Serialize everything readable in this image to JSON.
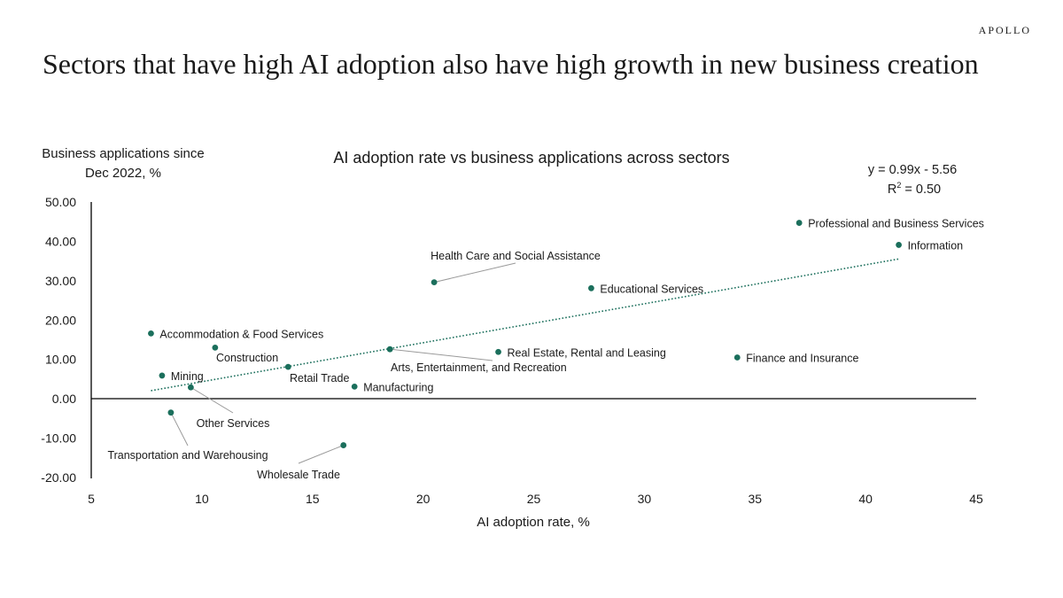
{
  "brand": "APOLLO",
  "headline": "Sectors that have high AI adoption also have high growth in new business creation",
  "chart_data": {
    "type": "scatter",
    "title": "AI adoption rate vs business applications across sectors",
    "xlabel": "AI adoption rate, %",
    "ylabel_lines": [
      "Business applications since",
      "Dec 2022, %"
    ],
    "xlim": [
      5,
      45
    ],
    "ylim": [
      -20,
      50
    ],
    "x_ticks": [
      5,
      10,
      15,
      20,
      25,
      30,
      35,
      40,
      45
    ],
    "y_ticks": [
      "50.00",
      "40.00",
      "30.00",
      "20.00",
      "10.00",
      "0.00",
      "-10.00",
      "-20.00"
    ],
    "grid": false,
    "point_color": "#1b6f5c",
    "trendline": {
      "equation": "y = 0.99x - 5.56",
      "r2_prefix": "R",
      "r2_exp": "2",
      "r2_value": " = 0.50",
      "slope": 0.99,
      "intercept": -5.56,
      "x_range": [
        7.7,
        41.5
      ],
      "style": "dotted"
    },
    "points": [
      {
        "label": "Professional and Business Services",
        "x": 37.0,
        "y": 44.7
      },
      {
        "label": "Information",
        "x": 41.5,
        "y": 39.1
      },
      {
        "label": "Health Care and Social Assistance",
        "x": 20.5,
        "y": 29.6
      },
      {
        "label": "Educational Services",
        "x": 27.6,
        "y": 28.1
      },
      {
        "label": "Accommodation & Food Services",
        "x": 7.7,
        "y": 16.6
      },
      {
        "label": "Construction",
        "x": 10.6,
        "y": 13.0
      },
      {
        "label": "Arts, Entertainment, and Recreation",
        "x": 18.5,
        "y": 12.6
      },
      {
        "label": "Real Estate, Rental and Leasing",
        "x": 23.4,
        "y": 11.9
      },
      {
        "label": "Finance and Insurance",
        "x": 34.2,
        "y": 10.5
      },
      {
        "label": "Retail Trade",
        "x": 13.9,
        "y": 8.1
      },
      {
        "label": "Mining",
        "x": 8.2,
        "y": 5.9
      },
      {
        "label": "Manufacturing",
        "x": 16.9,
        "y": 3.1
      },
      {
        "label": "Other Services",
        "x": 9.5,
        "y": 2.9
      },
      {
        "label": "Transportation and Warehousing",
        "x": 8.6,
        "y": -3.5
      },
      {
        "label": "Wholesale Trade",
        "x": 16.4,
        "y": -11.8
      }
    ]
  }
}
